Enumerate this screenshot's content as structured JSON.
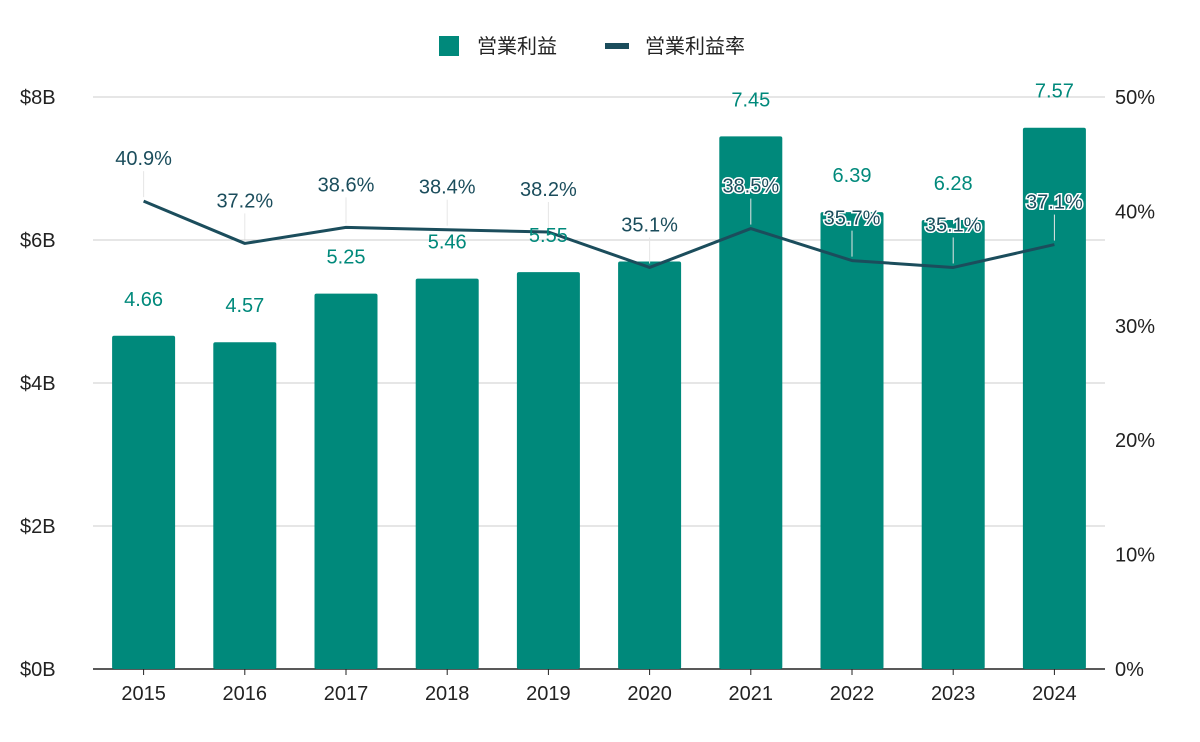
{
  "colors": {
    "bar": "#00897b",
    "line": "#1b4d5c",
    "bar_label": "#00897b",
    "line_label": "#1b4d5c",
    "grid": "#cccccc",
    "axis": "#222222"
  },
  "chart_data": {
    "type": "bar",
    "categories": [
      "2015",
      "2016",
      "2017",
      "2018",
      "2019",
      "2020",
      "2021",
      "2022",
      "2023",
      "2024"
    ],
    "series": [
      {
        "name": "営業利益",
        "type": "bar",
        "axis": "left",
        "values": [
          4.66,
          4.57,
          5.25,
          5.46,
          5.55,
          5.7,
          7.45,
          6.39,
          6.28,
          7.57
        ],
        "labels": [
          "4.66",
          "4.57",
          "5.25",
          "5.46",
          "5.55",
          "",
          "7.45",
          "6.39",
          "6.28",
          "7.57"
        ]
      },
      {
        "name": "営業利益率",
        "type": "line",
        "axis": "right",
        "values": [
          40.9,
          37.2,
          38.6,
          38.4,
          38.2,
          35.1,
          38.5,
          35.7,
          35.1,
          37.1
        ],
        "labels": [
          "40.9%",
          "37.2%",
          "38.6%",
          "38.4%",
          "38.2%",
          "35.1%",
          "38.5%",
          "35.7%",
          "35.1%",
          "37.1%"
        ]
      }
    ],
    "y_left": {
      "min": 0,
      "max": 8,
      "ticks": [
        0,
        2,
        4,
        6,
        8
      ],
      "tick_labels": [
        "$0B",
        "$2B",
        "$4B",
        "$6B",
        "$8B"
      ]
    },
    "y_right": {
      "min": 0,
      "max": 50,
      "ticks": [
        0,
        10,
        20,
        30,
        40,
        50
      ],
      "tick_labels": [
        "0%",
        "10%",
        "20%",
        "30%",
        "40%",
        "50%"
      ]
    },
    "grid": true,
    "legend_position": "top-center"
  }
}
